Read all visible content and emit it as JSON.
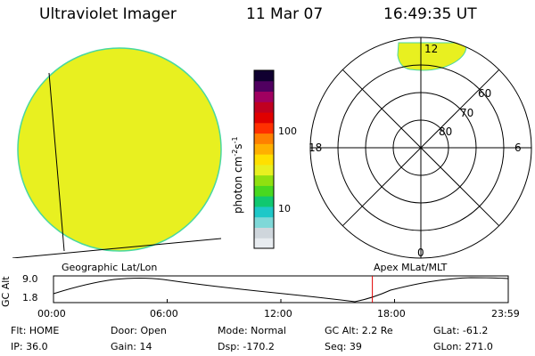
{
  "header": {
    "title": "Ultraviolet Imager",
    "date": "11 Mar 07",
    "time": "16:49:35 UT"
  },
  "colorbar": {
    "label": "photon cm^-2 s^-1",
    "ticks": [
      "100",
      "10"
    ],
    "colors": [
      "#e8ecf0",
      "#cfd6dc",
      "#7fd8d8",
      "#1ec8c8",
      "#10c870",
      "#48d820",
      "#90e010",
      "#e8f020",
      "#ffe000",
      "#ffb000",
      "#ff8000",
      "#ff3000",
      "#e00000",
      "#c00020",
      "#a00060",
      "#500060",
      "#100030"
    ]
  },
  "polar": {
    "mlt_labels": [
      "12",
      "18",
      "6",
      "0"
    ],
    "lat_labels": [
      "60",
      "70",
      "80"
    ]
  },
  "labels": {
    "geo": "Geographic Lat/Lon",
    "apex": "Apex MLat/MLT"
  },
  "altitude_plot": {
    "ylabel": "GC Alt",
    "yticks": [
      "9.0",
      "1.8"
    ],
    "xticks": [
      "00:00",
      "06:00",
      "12:00",
      "18:00",
      "23:59"
    ],
    "current_time_fraction": 0.7012
  },
  "status": {
    "row1": [
      {
        "key": "flt",
        "text": "Flt: HOME"
      },
      {
        "key": "door",
        "text": "Door: Open"
      },
      {
        "key": "mode",
        "text": "Mode: Normal"
      },
      {
        "key": "gcalt",
        "text": "GC Alt: 2.2 Re"
      },
      {
        "key": "glat",
        "text": "GLat: -61.2"
      }
    ],
    "row2": [
      {
        "key": "ip",
        "text": "IP: 36.0"
      },
      {
        "key": "gain",
        "text": "Gain: 14"
      },
      {
        "key": "dsp",
        "text": "Dsp: -170.2"
      },
      {
        "key": "seq",
        "text": "Seq: 39"
      },
      {
        "key": "glon",
        "text": "GLon: 271.0"
      }
    ]
  },
  "image_colors": {
    "disk": "#e8f020",
    "disk_edge": "#48d8a0"
  }
}
